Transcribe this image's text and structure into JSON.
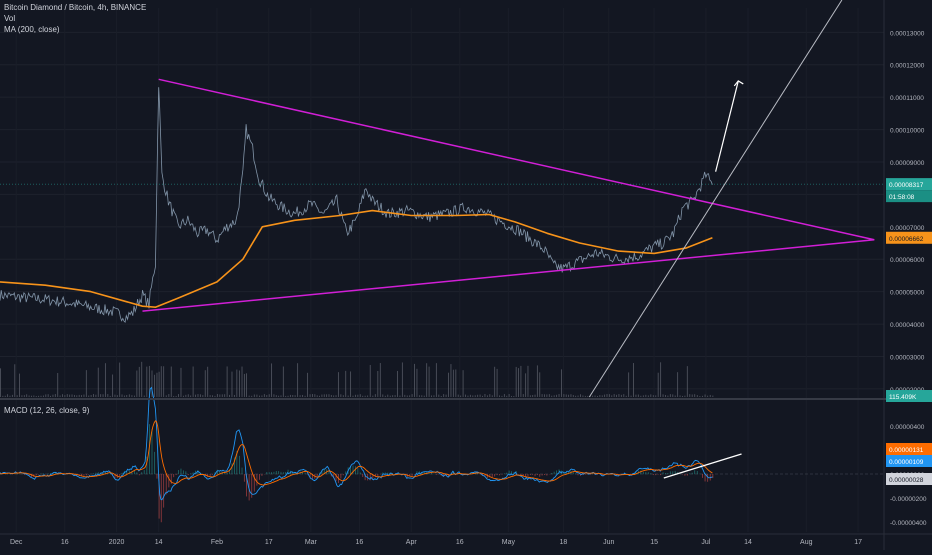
{
  "header": {
    "title": "Bitcoin Diamond / Bitcoin, 4h, BINANCE",
    "vol_label": "Vol",
    "ma_label": "MA (200, close)"
  },
  "macd": {
    "label": "MACD (12, 26, close, 9)",
    "y_ticks": [
      "0.00000400",
      "0.00000200",
      "0.00000000",
      "-0.00000200",
      "-0.00000400"
    ],
    "badge_macd": "0.00000131",
    "badge_signal": "0.00000109",
    "badge_hist": "0.00000028"
  },
  "colors": {
    "background": "#131722",
    "price": "#8fa3b8",
    "ma": "#f7931a",
    "trendline": "#d11fd6",
    "channel": "#b9bcc4",
    "arrow": "#ffffff",
    "last_price": "#26a69a",
    "macd_line": "#2196f3",
    "signal_line": "#ff6d00"
  },
  "chart_data": [
    {
      "type": "line",
      "title": "Bitcoin Diamond / Bitcoin, 4h, BINANCE",
      "x_ticks": [
        "Dec",
        "16",
        "2020",
        "14",
        "Feb",
        "17",
        "Mar",
        "16",
        "Apr",
        "16",
        "May",
        "18",
        "Jun",
        "15",
        "Jul",
        "14",
        "Aug",
        "17"
      ],
      "y_ticks": [
        "0.00013000",
        "0.00012000",
        "0.00011000",
        "0.00010000",
        "0.00009000",
        "0.00008000",
        "0.00007000",
        "0.00006000",
        "0.00005000",
        "0.00004000",
        "0.00003000",
        "0.00002000"
      ],
      "y_range": [
        1.75e-05,
        0.0001375
      ],
      "last_price": "0.00008317",
      "countdown": "01:58:08",
      "ma_value": "0.00006662",
      "volume_value": "115.409K",
      "series": [
        {
          "name": "Bitcoin Diamond / Bitcoin",
          "points": [
            [
              "2019-11-26",
              4.9e-05
            ],
            [
              "2019-12-03",
              4.82e-05
            ],
            [
              "2019-12-10",
              4.76e-05
            ],
            [
              "2019-12-17",
              4.66e-05
            ],
            [
              "2019-12-24",
              4.52e-05
            ],
            [
              "2019-12-31",
              4.38e-05
            ],
            [
              "2020-01-04",
              4.22e-05
            ],
            [
              "2020-01-06",
              4.35e-05
            ],
            [
              "2020-01-09",
              4.9e-05
            ],
            [
              "2020-01-11",
              4.6e-05
            ],
            [
              "2020-01-13",
              5.9e-05
            ],
            [
              "2020-01-14",
              0.000115
            ],
            [
              "2020-01-15",
              8.6e-05
            ],
            [
              "2020-01-17",
              7.8e-05
            ],
            [
              "2020-01-20",
              7e-05
            ],
            [
              "2020-01-23",
              7.2e-05
            ],
            [
              "2020-01-26",
              6.8e-05
            ],
            [
              "2020-01-29",
              6.9e-05
            ],
            [
              "2020-02-01",
              6.6e-05
            ],
            [
              "2020-02-04",
              7e-05
            ],
            [
              "2020-02-07",
              7.2e-05
            ],
            [
              "2020-02-09",
              8.6e-05
            ],
            [
              "2020-02-10",
              0.0001
            ],
            [
              "2020-02-12",
              9.4e-05
            ],
            [
              "2020-02-14",
              8.5e-05
            ],
            [
              "2020-02-17",
              7.9e-05
            ],
            [
              "2020-02-21",
              7.6e-05
            ],
            [
              "2020-02-25",
              7.4e-05
            ],
            [
              "2020-03-01",
              7.7e-05
            ],
            [
              "2020-03-05",
              7.4e-05
            ],
            [
              "2020-03-09",
              7.8e-05
            ],
            [
              "2020-03-12",
              6.8e-05
            ],
            [
              "2020-03-15",
              7.2e-05
            ],
            [
              "2020-03-18",
              8.2e-05
            ],
            [
              "2020-03-20",
              7.8e-05
            ],
            [
              "2020-03-25",
              7.4e-05
            ],
            [
              "2020-03-31",
              7.5e-05
            ],
            [
              "2020-04-06",
              7.3e-05
            ],
            [
              "2020-04-12",
              7.4e-05
            ],
            [
              "2020-04-18",
              7.6e-05
            ],
            [
              "2020-04-24",
              7.4e-05
            ],
            [
              "2020-04-30",
              7.1e-05
            ],
            [
              "2020-05-04",
              6.9e-05
            ],
            [
              "2020-05-08",
              6.6e-05
            ],
            [
              "2020-05-12",
              6.3e-05
            ],
            [
              "2020-05-15",
              5.8e-05
            ],
            [
              "2020-05-18",
              5.7e-05
            ],
            [
              "2020-05-22",
              5.9e-05
            ],
            [
              "2020-05-28",
              6.2e-05
            ],
            [
              "2020-06-04",
              6e-05
            ],
            [
              "2020-06-10",
              6.1e-05
            ],
            [
              "2020-06-15",
              6.4e-05
            ],
            [
              "2020-06-18",
              6.5e-05
            ],
            [
              "2020-06-21",
              6.8e-05
            ],
            [
              "2020-06-24",
              7.6e-05
            ],
            [
              "2020-06-27",
              7.8e-05
            ],
            [
              "2020-06-29",
              8.2e-05
            ],
            [
              "2020-07-01",
              8.6e-05
            ],
            [
              "2020-07-03",
              8.3e-05
            ]
          ]
        },
        {
          "name": "MA (200, close)",
          "points": [
            [
              "2019-11-26",
              5.3e-05
            ],
            [
              "2019-12-10",
              5.2e-05
            ],
            [
              "2019-12-24",
              5e-05
            ],
            [
              "2020-01-09",
              4.55e-05
            ],
            [
              "2020-01-13",
              4.52e-05
            ],
            [
              "2020-01-20",
              4.8e-05
            ],
            [
              "2020-02-01",
              5.3e-05
            ],
            [
              "2020-02-09",
              6e-05
            ],
            [
              "2020-02-15",
              7e-05
            ],
            [
              "2020-02-25",
              7.2e-05
            ],
            [
              "2020-03-10",
              7.35e-05
            ],
            [
              "2020-03-20",
              7.5e-05
            ],
            [
              "2020-04-01",
              7.35e-05
            ],
            [
              "2020-04-15",
              7.35e-05
            ],
            [
              "2020-04-25",
              7.38e-05
            ],
            [
              "2020-05-03",
              7.15e-05
            ],
            [
              "2020-05-13",
              6.8e-05
            ],
            [
              "2020-05-23",
              6.5e-05
            ],
            [
              "2020-06-04",
              6.25e-05
            ],
            [
              "2020-06-15",
              6.18e-05
            ],
            [
              "2020-06-25",
              6.35e-05
            ],
            [
              "2020-07-03",
              6.66e-05
            ]
          ]
        }
      ]
    }
  ]
}
